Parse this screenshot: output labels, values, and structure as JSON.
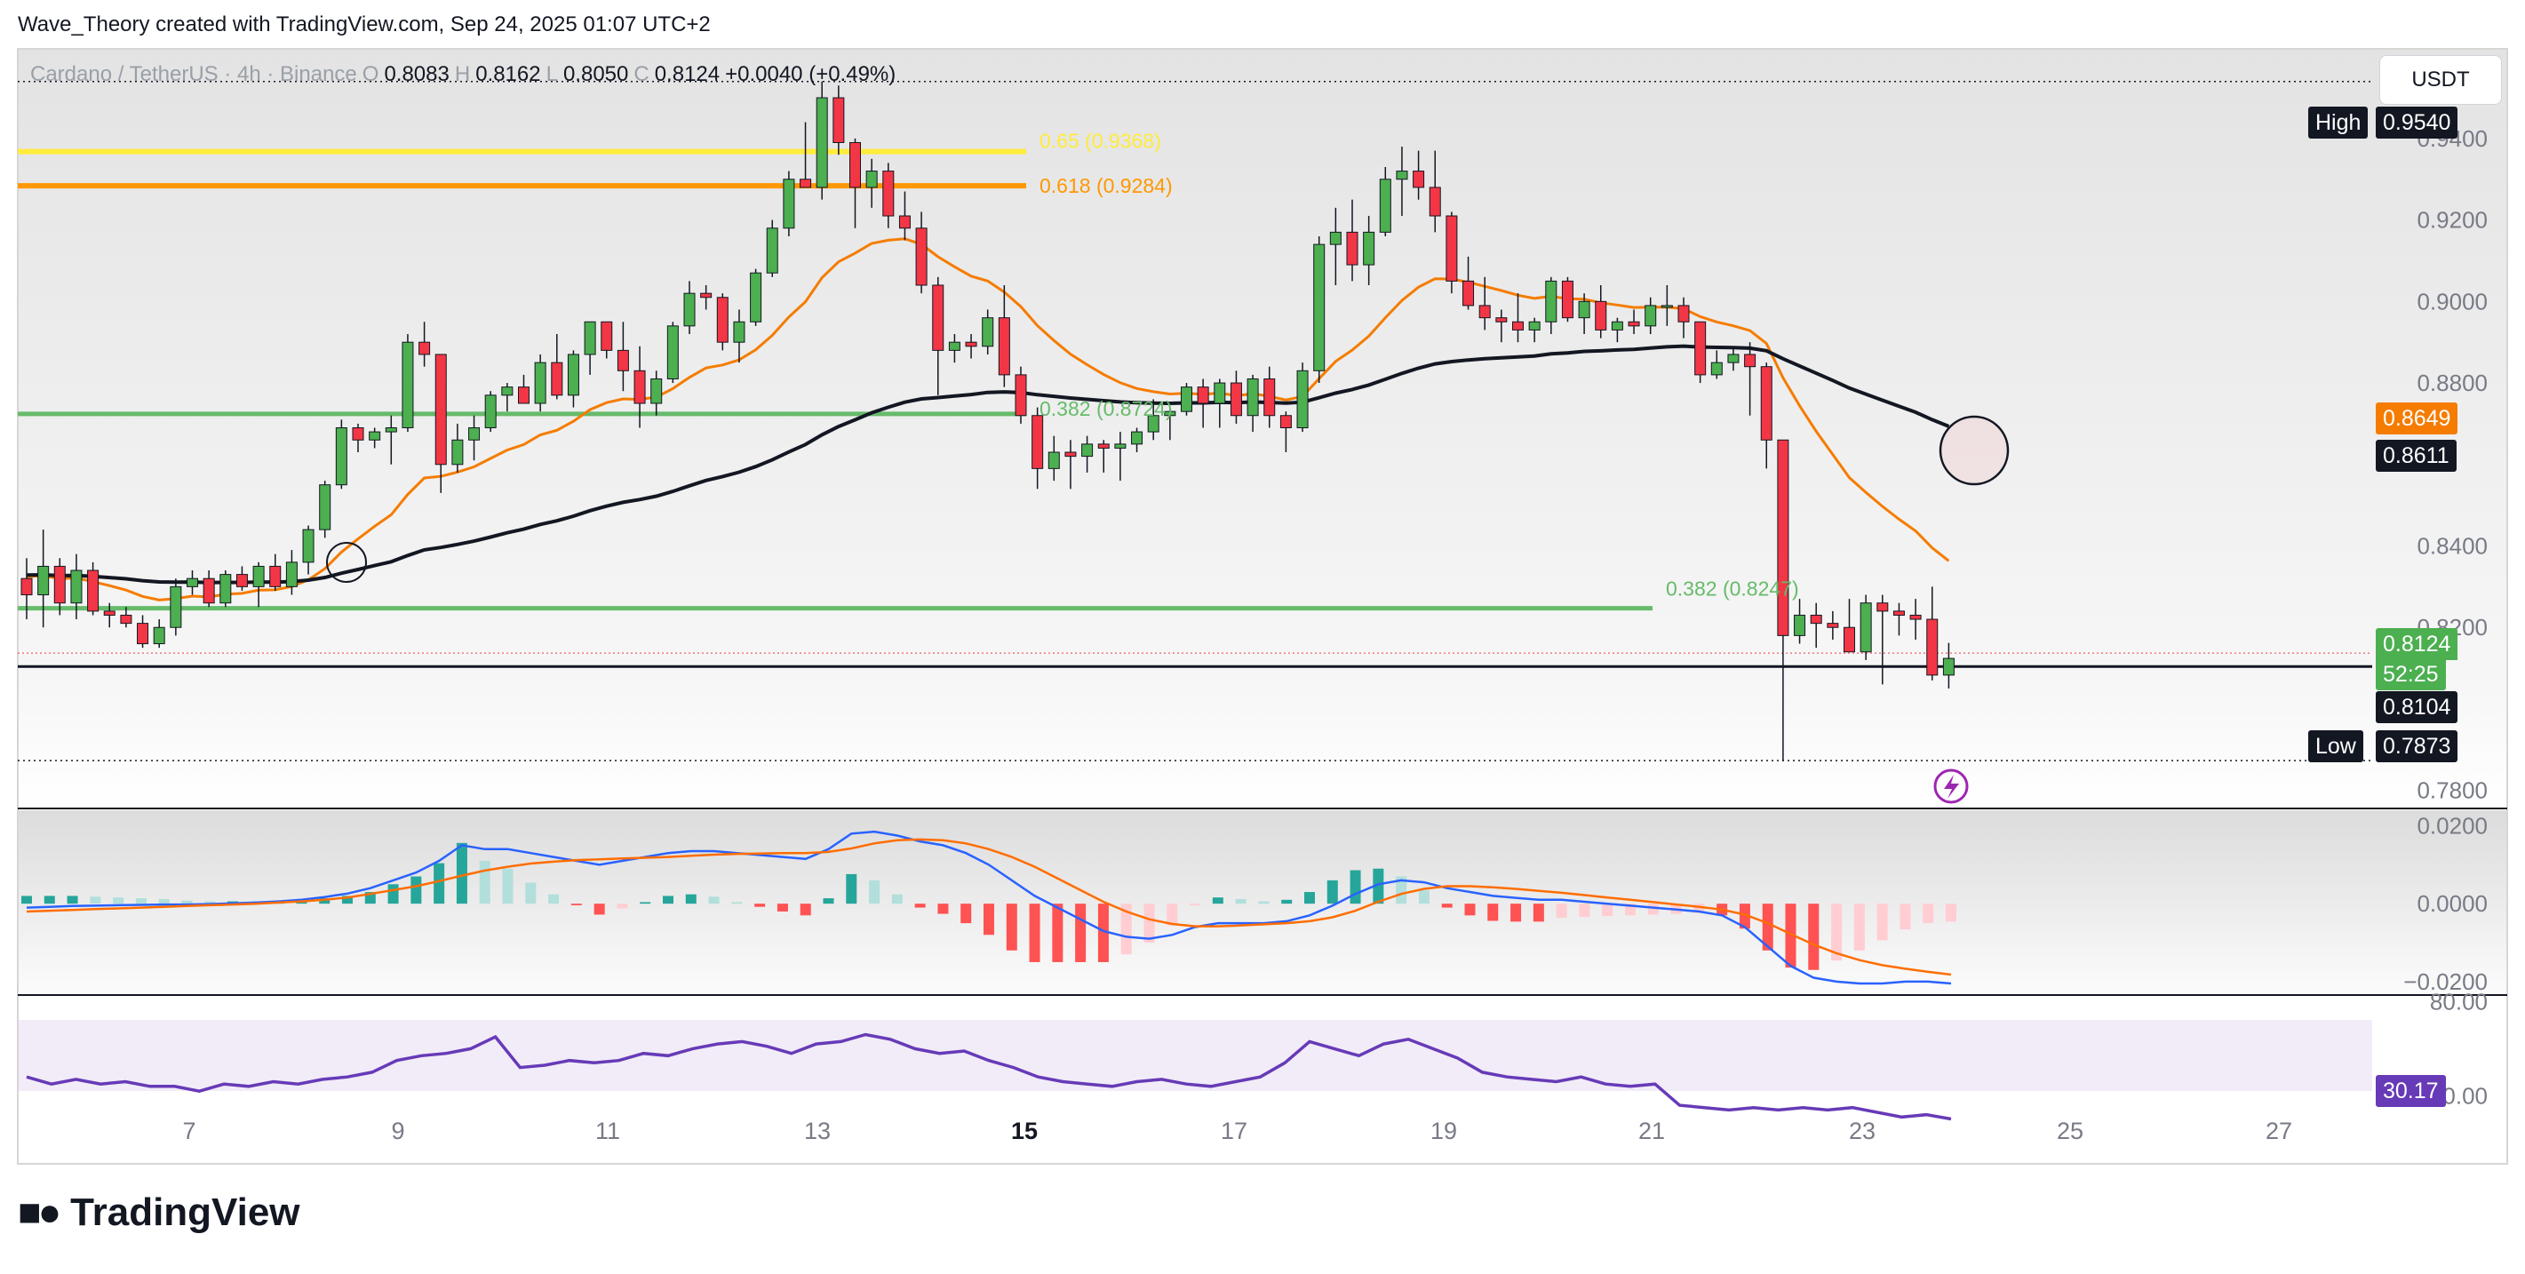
{
  "header": {
    "caption": "Wave_Theory created with TradingView.com, Sep 24, 2025 01:07 UTC+2",
    "symbol": "Cardano / TetherUS · 4h · Binance",
    "o_label": "O",
    "o_value": "0.8083",
    "h_label": "H",
    "h_value": "0.8162",
    "l_label": "L",
    "l_value": "0.8050",
    "c_label": "C",
    "c_value": "0.8124",
    "change": "+0.0040 (+0.49%)"
  },
  "currency_button": "USDT",
  "brand": "TradingView",
  "colors": {
    "up": "#4caf50",
    "down": "#f23645",
    "ema": "#f57c00",
    "ma": "#131722",
    "fib_yellow": "#ffeb3b",
    "fib_orange": "#ff9800",
    "support_green": "#66bb6a",
    "macd": "#2962ff",
    "signal": "#ff6d00",
    "rsi": "#673ab7"
  },
  "chart_data": [
    {
      "type": "candlestick",
      "title": "",
      "x_ticks": [
        "7",
        "9",
        "11",
        "13",
        "15",
        "17",
        "19",
        "21",
        "23",
        "25",
        "27"
      ],
      "y_ticks": [
        "0.9400",
        "0.9200",
        "0.9000",
        "0.8800",
        "0.8400",
        "0.8200",
        "0.7800"
      ],
      "ylim": [
        0.776,
        0.962
      ],
      "price_labels": {
        "high_label": "High",
        "high": "0.9540",
        "low_label": "Low",
        "low": "0.7873",
        "ema": "0.8649",
        "ma": "0.8611",
        "last": "0.8124",
        "countdown": "52:25",
        "line": "0.8104"
      },
      "fib_levels": [
        {
          "label": "0.65 (0.9368)",
          "value": 0.9368
        },
        {
          "label": "0.618 (0.9284)",
          "value": 0.9284
        },
        {
          "label": "0.382 (0.8724)",
          "value": 0.8724
        },
        {
          "label": "0.382 (0.8247)",
          "value": 0.8247
        }
      ],
      "support_levels": [
        0.8724,
        0.8247,
        0.8104
      ],
      "candles_ohlc": [
        [
          0.832,
          0.837,
          0.822,
          0.828
        ],
        [
          0.828,
          0.844,
          0.82,
          0.835
        ],
        [
          0.835,
          0.837,
          0.823,
          0.826
        ],
        [
          0.826,
          0.838,
          0.822,
          0.834
        ],
        [
          0.834,
          0.836,
          0.823,
          0.824
        ],
        [
          0.824,
          0.826,
          0.82,
          0.823
        ],
        [
          0.823,
          0.825,
          0.82,
          0.821
        ],
        [
          0.821,
          0.823,
          0.815,
          0.816
        ],
        [
          0.816,
          0.822,
          0.815,
          0.82
        ],
        [
          0.82,
          0.832,
          0.818,
          0.83
        ],
        [
          0.83,
          0.834,
          0.828,
          0.832
        ],
        [
          0.832,
          0.834,
          0.825,
          0.826
        ],
        [
          0.826,
          0.834,
          0.825,
          0.833
        ],
        [
          0.833,
          0.835,
          0.829,
          0.83
        ],
        [
          0.83,
          0.836,
          0.825,
          0.835
        ],
        [
          0.835,
          0.838,
          0.829,
          0.83
        ],
        [
          0.83,
          0.839,
          0.828,
          0.836
        ],
        [
          0.836,
          0.845,
          0.833,
          0.844
        ],
        [
          0.844,
          0.856,
          0.842,
          0.855
        ],
        [
          0.855,
          0.871,
          0.854,
          0.869
        ],
        [
          0.869,
          0.87,
          0.863,
          0.866
        ],
        [
          0.866,
          0.869,
          0.864,
          0.868
        ],
        [
          0.868,
          0.872,
          0.86,
          0.869
        ],
        [
          0.869,
          0.892,
          0.868,
          0.89
        ],
        [
          0.89,
          0.895,
          0.884,
          0.887
        ],
        [
          0.887,
          0.887,
          0.853,
          0.86
        ],
        [
          0.86,
          0.87,
          0.858,
          0.866
        ],
        [
          0.866,
          0.872,
          0.861,
          0.869
        ],
        [
          0.869,
          0.878,
          0.868,
          0.877
        ],
        [
          0.877,
          0.88,
          0.873,
          0.879
        ],
        [
          0.879,
          0.882,
          0.876,
          0.875
        ],
        [
          0.875,
          0.887,
          0.873,
          0.885
        ],
        [
          0.885,
          0.892,
          0.876,
          0.877
        ],
        [
          0.877,
          0.888,
          0.874,
          0.887
        ],
        [
          0.887,
          0.895,
          0.882,
          0.895
        ],
        [
          0.895,
          0.895,
          0.886,
          0.888
        ],
        [
          0.888,
          0.895,
          0.878,
          0.883
        ],
        [
          0.883,
          0.889,
          0.869,
          0.875
        ],
        [
          0.875,
          0.883,
          0.872,
          0.881
        ],
        [
          0.881,
          0.895,
          0.88,
          0.894
        ],
        [
          0.894,
          0.905,
          0.892,
          0.902
        ],
        [
          0.902,
          0.904,
          0.898,
          0.901
        ],
        [
          0.901,
          0.902,
          0.888,
          0.89
        ],
        [
          0.89,
          0.898,
          0.885,
          0.895
        ],
        [
          0.895,
          0.908,
          0.894,
          0.907
        ],
        [
          0.907,
          0.92,
          0.906,
          0.918
        ],
        [
          0.918,
          0.932,
          0.916,
          0.93
        ],
        [
          0.93,
          0.944,
          0.928,
          0.928
        ],
        [
          0.928,
          0.954,
          0.925,
          0.95
        ],
        [
          0.95,
          0.953,
          0.936,
          0.939
        ],
        [
          0.939,
          0.94,
          0.918,
          0.928
        ],
        [
          0.928,
          0.935,
          0.923,
          0.932
        ],
        [
          0.932,
          0.934,
          0.918,
          0.921
        ],
        [
          0.921,
          0.927,
          0.915,
          0.918
        ],
        [
          0.918,
          0.922,
          0.902,
          0.904
        ],
        [
          0.904,
          0.906,
          0.877,
          0.888
        ],
        [
          0.888,
          0.892,
          0.885,
          0.89
        ],
        [
          0.89,
          0.892,
          0.886,
          0.889
        ],
        [
          0.889,
          0.898,
          0.887,
          0.896
        ],
        [
          0.896,
          0.904,
          0.879,
          0.882
        ],
        [
          0.882,
          0.884,
          0.87,
          0.872
        ],
        [
          0.872,
          0.874,
          0.854,
          0.859
        ],
        [
          0.859,
          0.867,
          0.856,
          0.863
        ],
        [
          0.863,
          0.866,
          0.854,
          0.862
        ],
        [
          0.862,
          0.867,
          0.858,
          0.865
        ],
        [
          0.865,
          0.866,
          0.858,
          0.864
        ],
        [
          0.864,
          0.868,
          0.856,
          0.865
        ],
        [
          0.865,
          0.869,
          0.863,
          0.868
        ],
        [
          0.868,
          0.876,
          0.866,
          0.872
        ],
        [
          0.872,
          0.874,
          0.866,
          0.873
        ],
        [
          0.873,
          0.88,
          0.872,
          0.879
        ],
        [
          0.879,
          0.881,
          0.869,
          0.875
        ],
        [
          0.875,
          0.881,
          0.869,
          0.88
        ],
        [
          0.88,
          0.883,
          0.87,
          0.872
        ],
        [
          0.872,
          0.882,
          0.868,
          0.881
        ],
        [
          0.881,
          0.884,
          0.869,
          0.872
        ],
        [
          0.872,
          0.873,
          0.863,
          0.869
        ],
        [
          0.869,
          0.885,
          0.868,
          0.883
        ],
        [
          0.883,
          0.916,
          0.88,
          0.914
        ],
        [
          0.914,
          0.923,
          0.904,
          0.917
        ],
        [
          0.917,
          0.925,
          0.905,
          0.909
        ],
        [
          0.909,
          0.921,
          0.904,
          0.917
        ],
        [
          0.917,
          0.933,
          0.916,
          0.93
        ],
        [
          0.93,
          0.938,
          0.921,
          0.932
        ],
        [
          0.932,
          0.937,
          0.925,
          0.928
        ],
        [
          0.928,
          0.937,
          0.917,
          0.921
        ],
        [
          0.921,
          0.922,
          0.902,
          0.905
        ],
        [
          0.905,
          0.911,
          0.898,
          0.899
        ],
        [
          0.899,
          0.906,
          0.893,
          0.896
        ],
        [
          0.896,
          0.898,
          0.89,
          0.895
        ],
        [
          0.895,
          0.902,
          0.89,
          0.893
        ],
        [
          0.893,
          0.896,
          0.89,
          0.895
        ],
        [
          0.895,
          0.906,
          0.892,
          0.905
        ],
        [
          0.905,
          0.906,
          0.895,
          0.896
        ],
        [
          0.896,
          0.902,
          0.892,
          0.9
        ],
        [
          0.9,
          0.904,
          0.891,
          0.893
        ],
        [
          0.893,
          0.896,
          0.89,
          0.895
        ],
        [
          0.895,
          0.898,
          0.892,
          0.894
        ],
        [
          0.894,
          0.901,
          0.892,
          0.899
        ],
        [
          0.899,
          0.904,
          0.894,
          0.899
        ],
        [
          0.899,
          0.901,
          0.891,
          0.895
        ],
        [
          0.895,
          0.895,
          0.88,
          0.882
        ],
        [
          0.882,
          0.888,
          0.881,
          0.885
        ],
        [
          0.885,
          0.889,
          0.883,
          0.887
        ],
        [
          0.887,
          0.89,
          0.872,
          0.884
        ],
        [
          0.884,
          0.885,
          0.859,
          0.866
        ],
        [
          0.866,
          0.866,
          0.7873,
          0.818
        ],
        [
          0.818,
          0.827,
          0.816,
          0.823
        ],
        [
          0.823,
          0.826,
          0.815,
          0.821
        ],
        [
          0.821,
          0.824,
          0.817,
          0.82
        ],
        [
          0.82,
          0.827,
          0.814,
          0.814
        ],
        [
          0.814,
          0.828,
          0.812,
          0.826
        ],
        [
          0.826,
          0.828,
          0.806,
          0.824
        ],
        [
          0.824,
          0.826,
          0.818,
          0.823
        ],
        [
          0.823,
          0.827,
          0.817,
          0.822
        ],
        [
          0.822,
          0.83,
          0.807,
          0.8083
        ],
        [
          0.8083,
          0.8162,
          0.805,
          0.8124
        ]
      ]
    },
    {
      "type": "line",
      "title": "",
      "y_ticks": [
        "0.0200",
        "0.0000",
        "−0.0200"
      ],
      "ylim": [
        -0.023,
        0.024
      ],
      "macd": [
        -0.001,
        -0.0008,
        -0.0006,
        -0.0005,
        -0.0004,
        -0.0003,
        -0.0002,
        -0.0002,
        -0.0001,
        0.0001,
        0.0003,
        0.0006,
        0.001,
        0.0017,
        0.0026,
        0.004,
        0.006,
        0.008,
        0.011,
        0.015,
        0.014,
        0.014,
        0.013,
        0.012,
        0.011,
        0.01,
        0.011,
        0.012,
        0.013,
        0.0135,
        0.0135,
        0.013,
        0.0125,
        0.012,
        0.0115,
        0.014,
        0.018,
        0.0185,
        0.0175,
        0.016,
        0.015,
        0.013,
        0.01,
        0.006,
        0.002,
        -0.001,
        -0.004,
        -0.007,
        -0.0085,
        -0.009,
        -0.008,
        -0.006,
        -0.005,
        -0.005,
        -0.005,
        -0.0045,
        -0.003,
        -0.0005,
        0.0025,
        0.005,
        0.006,
        0.0055,
        0.004,
        0.003,
        0.002,
        0.0015,
        0.001,
        0.001,
        0.0005,
        0.0,
        -0.0005,
        -0.001,
        -0.0015,
        -0.002,
        -0.003,
        -0.006,
        -0.011,
        -0.016,
        -0.019,
        -0.02,
        -0.0205,
        -0.0205,
        -0.02,
        -0.02,
        -0.0205
      ],
      "signal": [
        -0.002,
        -0.0018,
        -0.0016,
        -0.0014,
        -0.0012,
        -0.001,
        -0.0008,
        -0.0006,
        -0.0004,
        -0.0002,
        0.0,
        0.0003,
        0.0006,
        0.001,
        0.0016,
        0.0025,
        0.0035,
        0.0045,
        0.0058,
        0.0072,
        0.0085,
        0.0095,
        0.0103,
        0.0108,
        0.0112,
        0.0114,
        0.0116,
        0.0118,
        0.012,
        0.0123,
        0.0126,
        0.0128,
        0.0129,
        0.013,
        0.013,
        0.0133,
        0.0142,
        0.0155,
        0.0163,
        0.0165,
        0.0163,
        0.0155,
        0.014,
        0.012,
        0.0095,
        0.0065,
        0.0035,
        0.0005,
        -0.002,
        -0.004,
        -0.0052,
        -0.0058,
        -0.0058,
        -0.0056,
        -0.0053,
        -0.005,
        -0.0045,
        -0.0035,
        -0.0018,
        0.0005,
        0.0025,
        0.0038,
        0.0045,
        0.0045,
        0.0042,
        0.0038,
        0.0033,
        0.0028,
        0.0022,
        0.0016,
        0.001,
        0.0004,
        -0.0002,
        -0.0008,
        -0.0015,
        -0.0028,
        -0.005,
        -0.0078,
        -0.0105,
        -0.0127,
        -0.0145,
        -0.0158,
        -0.0167,
        -0.0175,
        -0.0182
      ]
    },
    {
      "type": "line",
      "title": "",
      "y_ticks": [
        "80.00",
        "40.00"
      ],
      "ylim": [
        30,
        82
      ],
      "last_value": "30.17",
      "rsi": [
        48,
        45,
        47,
        45,
        46,
        44,
        44,
        42,
        45,
        44,
        46,
        45,
        47,
        48,
        50,
        55,
        57,
        58,
        60,
        65,
        52,
        53,
        55,
        54,
        55,
        58,
        57,
        60,
        62,
        63,
        61,
        58,
        62,
        63,
        66,
        64,
        60,
        58,
        59,
        55,
        52,
        48,
        46,
        45,
        44,
        46,
        47,
        45,
        44,
        46,
        48,
        54,
        63,
        60,
        57,
        62,
        64,
        60,
        56,
        50,
        48,
        47,
        46,
        48,
        45,
        44,
        45,
        36,
        35,
        34,
        35,
        34,
        35,
        34,
        35,
        33,
        31,
        32,
        30.17
      ]
    }
  ]
}
